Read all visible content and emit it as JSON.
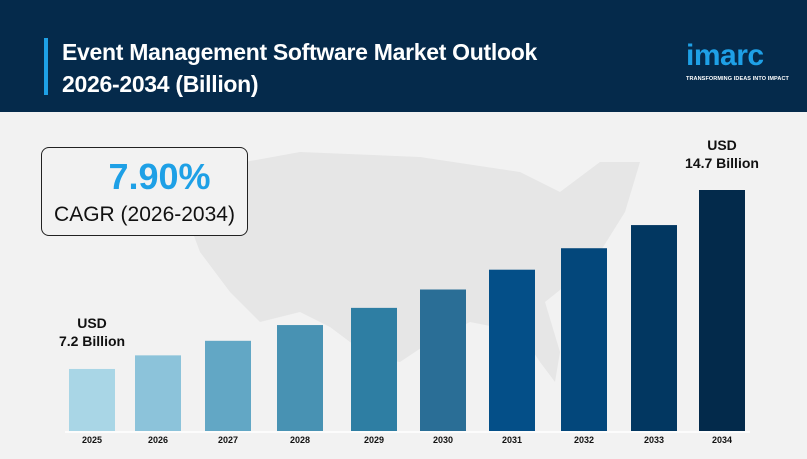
{
  "header": {
    "title_line1": "Event Management Software Market Outlook",
    "title_line2": "2026-2034 (Billion)",
    "logo": "imarc",
    "tagline": "TRANSFORMING IDEAS INTO IMPACT"
  },
  "cagr": {
    "value": "7.90%",
    "label": "CAGR (2026-2034)"
  },
  "annotations": {
    "start_line1": "USD",
    "start_line2": "7.2 Billion",
    "end_line1": "USD",
    "end_line2": "14.7 Billion"
  },
  "chart_data": {
    "type": "bar",
    "title": "Event Management Software Market Outlook 2026-2034 (Billion)",
    "categories": [
      "2025",
      "2026",
      "2027",
      "2028",
      "2029",
      "2030",
      "2031",
      "2032",
      "2033",
      "2034"
    ],
    "values": [
      7.2,
      7.77,
      8.38,
      9.04,
      9.76,
      10.53,
      11.36,
      12.26,
      13.23,
      14.7
    ],
    "colors": [
      "#a9d6e6",
      "#8cc3da",
      "#62a7c5",
      "#4892b3",
      "#2e7ea3",
      "#2a6e96",
      "#044f88",
      "#03477b",
      "#023761",
      "#032a4b"
    ],
    "ylim": [
      4.6,
      14.7
    ],
    "unit": "USD Billion"
  }
}
